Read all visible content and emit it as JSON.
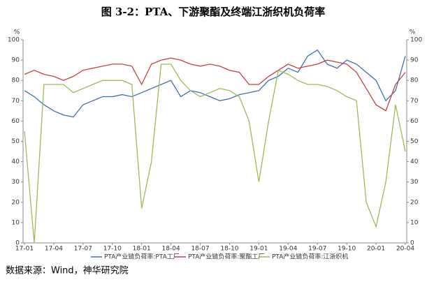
{
  "chart_data": {
    "type": "line",
    "title": "图 3-2：PTA、下游聚酯及终端江浙织机负荷率",
    "y_label": "%",
    "y2_label": "%",
    "source": "数据来源：Wind，神华研究院",
    "categories": [
      "17-01",
      null,
      null,
      "17-04",
      null,
      null,
      "17-07",
      null,
      null,
      "17-10",
      null,
      null,
      "18-01",
      null,
      null,
      "18-04",
      null,
      null,
      "18-07",
      null,
      null,
      "18-10",
      null,
      null,
      "19-01",
      null,
      null,
      "19-04",
      null,
      null,
      "19-07",
      null,
      null,
      "19-10",
      null,
      null,
      "20-01",
      null,
      null,
      "20-04"
    ],
    "series": [
      {
        "name": "PTA产业链负荷率:PTA工厂",
        "color": "#3d6fb6",
        "values": [
          75,
          72,
          68,
          65,
          63,
          62,
          68,
          70,
          72,
          72,
          73,
          72,
          74,
          76,
          78,
          80,
          72,
          75,
          74,
          72,
          70,
          71,
          73,
          74,
          75,
          80,
          82,
          86,
          84,
          92,
          95,
          88,
          86,
          90,
          88,
          84,
          80,
          70,
          75,
          92
        ]
      },
      {
        "name": "PTA产业链负荷率:聚酯工厂",
        "color": "#c9403c",
        "values": [
          83,
          85,
          83,
          82,
          80,
          82,
          85,
          86,
          87,
          88,
          88,
          87,
          78,
          88,
          90,
          91,
          90,
          88,
          87,
          88,
          87,
          85,
          84,
          78,
          78,
          82,
          85,
          88,
          86,
          87,
          88,
          90,
          89,
          88,
          84,
          76,
          68,
          65,
          78,
          84
        ]
      },
      {
        "name": "PTA产业链负荷率:江浙织机",
        "color": "#9bbb59",
        "values": [
          55,
          0,
          78,
          78,
          78,
          74,
          76,
          78,
          80,
          80,
          80,
          78,
          17,
          40,
          88,
          88,
          80,
          75,
          72,
          74,
          76,
          75,
          72,
          60,
          30,
          60,
          85,
          83,
          80,
          78,
          78,
          77,
          75,
          72,
          70,
          20,
          8,
          30,
          68,
          45
        ]
      }
    ],
    "ylim": [
      0,
      100
    ],
    "yticks": [
      0,
      10,
      20,
      30,
      40,
      50,
      60,
      70,
      80,
      90,
      100
    ],
    "y2lim": [
      0,
      100
    ],
    "y2ticks": [
      0,
      10,
      20,
      30,
      40,
      50,
      60,
      70,
      80,
      90,
      100
    ],
    "grid": false,
    "legend": "bottom"
  }
}
